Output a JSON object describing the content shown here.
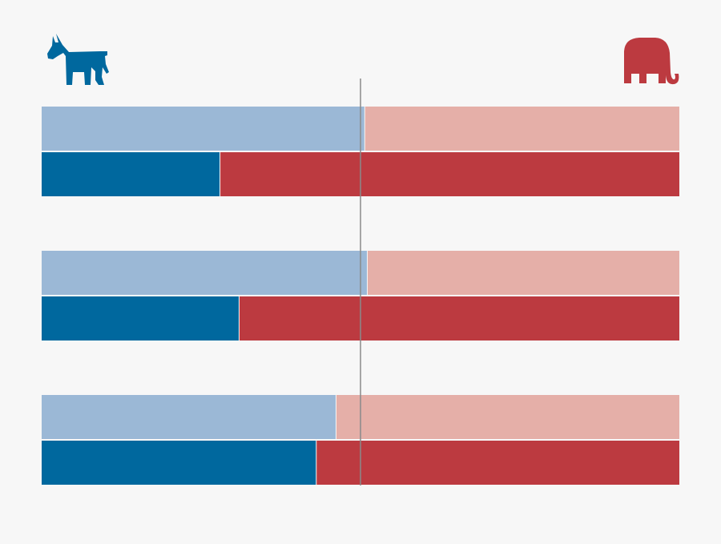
{
  "icons": {
    "democrat": "donkey-icon",
    "republican": "elephant-icon"
  },
  "colors": {
    "dem_light": "#9bb8d6",
    "dem_dark": "#00689e",
    "rep_light": "#e5afa8",
    "rep_dark": "#bc3a40",
    "midline": "#8a8a8a",
    "background": "#f7f7f7"
  },
  "chart_data": {
    "type": "bar",
    "orientation": "horizontal",
    "stacked": true,
    "xlim": [
      0,
      100
    ],
    "reference_line": 50,
    "legend": "none",
    "grid": false,
    "groups": [
      {
        "rows": [
          {
            "shade": "light",
            "democrat": 50.6,
            "republican": 49.4
          },
          {
            "shade": "dark",
            "democrat": 27.9,
            "republican": 72.1
          }
        ]
      },
      {
        "rows": [
          {
            "shade": "light",
            "democrat": 51.0,
            "republican": 49.0
          },
          {
            "shade": "dark",
            "democrat": 30.9,
            "republican": 69.1
          }
        ]
      },
      {
        "rows": [
          {
            "shade": "light",
            "democrat": 46.1,
            "republican": 53.9
          },
          {
            "shade": "dark",
            "democrat": 43.0,
            "republican": 57.0
          }
        ]
      }
    ]
  }
}
